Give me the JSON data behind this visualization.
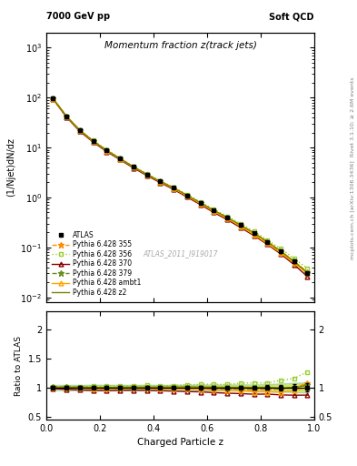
{
  "title_main": "Momentum fraction z(track jets)",
  "header_left": "7000 GeV pp",
  "header_right": "Soft QCD",
  "ylabel_main": "(1/Njet)dN/dz",
  "ylabel_ratio": "Ratio to ATLAS",
  "xlabel": "Charged Particle z",
  "watermark": "ATLAS_2011_I919017",
  "right_label_top": "Rivet 3.1.10; ≥ 2.6M events",
  "right_label_bot": "mcplots.cern.ch [arXiv:1306.3436]",
  "z_values": [
    0.025,
    0.075,
    0.125,
    0.175,
    0.225,
    0.275,
    0.325,
    0.375,
    0.425,
    0.475,
    0.525,
    0.575,
    0.625,
    0.675,
    0.725,
    0.775,
    0.825,
    0.875,
    0.925,
    0.975
  ],
  "atlas_y": [
    95.0,
    42.0,
    22.0,
    13.5,
    8.8,
    6.0,
    4.1,
    2.9,
    2.1,
    1.55,
    1.1,
    0.78,
    0.55,
    0.4,
    0.28,
    0.195,
    0.13,
    0.085,
    0.052,
    0.03
  ],
  "atlas_yerr": [
    2.0,
    1.0,
    0.5,
    0.35,
    0.22,
    0.15,
    0.1,
    0.07,
    0.05,
    0.04,
    0.03,
    0.022,
    0.016,
    0.012,
    0.009,
    0.006,
    0.005,
    0.004,
    0.003,
    0.002
  ],
  "p355_y": [
    94.0,
    41.5,
    21.8,
    13.2,
    8.6,
    5.9,
    4.05,
    2.85,
    2.05,
    1.52,
    1.08,
    0.76,
    0.53,
    0.385,
    0.27,
    0.185,
    0.125,
    0.082,
    0.052,
    0.032
  ],
  "p356_y": [
    96.0,
    42.5,
    22.3,
    13.8,
    9.0,
    6.15,
    4.2,
    3.0,
    2.15,
    1.6,
    1.15,
    0.82,
    0.58,
    0.42,
    0.3,
    0.21,
    0.14,
    0.095,
    0.06,
    0.038
  ],
  "p370_y": [
    93.0,
    40.5,
    21.0,
    12.8,
    8.3,
    5.7,
    3.9,
    2.75,
    1.98,
    1.45,
    1.02,
    0.72,
    0.5,
    0.36,
    0.25,
    0.172,
    0.115,
    0.074,
    0.045,
    0.026
  ],
  "p379_y": [
    95.5,
    42.2,
    22.0,
    13.4,
    8.7,
    5.95,
    4.05,
    2.88,
    2.08,
    1.53,
    1.09,
    0.77,
    0.54,
    0.39,
    0.275,
    0.19,
    0.128,
    0.083,
    0.052,
    0.031
  ],
  "pambt1_y": [
    94.5,
    41.8,
    21.9,
    13.3,
    8.65,
    5.92,
    4.08,
    2.87,
    2.06,
    1.51,
    1.07,
    0.755,
    0.525,
    0.38,
    0.265,
    0.18,
    0.12,
    0.078,
    0.049,
    0.03
  ],
  "pz2_y": [
    95.2,
    42.1,
    22.1,
    13.5,
    8.78,
    6.01,
    4.12,
    2.91,
    2.11,
    1.56,
    1.11,
    0.785,
    0.552,
    0.4,
    0.28,
    0.195,
    0.13,
    0.084,
    0.052,
    0.031
  ],
  "color_atlas": "#000000",
  "color_355": "#FF8C00",
  "color_356": "#9ACD32",
  "color_370": "#8B0000",
  "color_379": "#6B8E23",
  "color_ambt1": "#FFA500",
  "color_z2": "#808000",
  "bg_color": "#ffffff",
  "ylim_main": [
    0.008,
    2000
  ],
  "ylim_ratio": [
    0.45,
    2.3
  ],
  "xlim": [
    0.0,
    1.0
  ]
}
